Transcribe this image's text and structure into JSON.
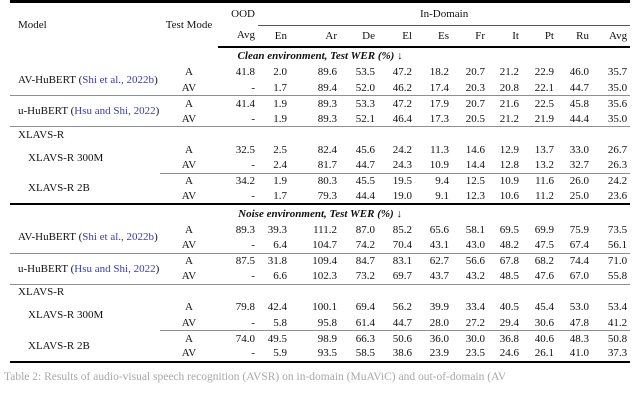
{
  "table": {
    "header": {
      "model": "Model",
      "test_mode": "Test Mode",
      "ood": "OOD",
      "in_domain": "In-Domain",
      "subheaders": [
        "Avg",
        "En",
        "Ar",
        "De",
        "El",
        "Es",
        "Fr",
        "It",
        "Pt",
        "Ru",
        "Avg"
      ]
    },
    "sections": [
      {
        "title": "Clean environment, Test WER (%) ↓",
        "entries": [
          {
            "model": "AV-HuBERT",
            "citation": "Shi et al., 2022b",
            "indent": false,
            "rule_after": "full",
            "rows": [
              {
                "mode": "A",
                "ood": "41.8",
                "in_domain": [
                  "2.0",
                  "89.6",
                  "53.5",
                  "47.2",
                  "18.2",
                  "20.7",
                  "21.2",
                  "22.9",
                  "46.0",
                  "35.7"
                ]
              },
              {
                "mode": "AV",
                "ood": "-",
                "in_domain": [
                  "1.7",
                  "89.4",
                  "52.0",
                  "46.2",
                  "17.4",
                  "20.3",
                  "20.8",
                  "22.1",
                  "44.7",
                  "35.0"
                ]
              }
            ]
          },
          {
            "model": "u-HuBERT",
            "citation": "Hsu and Shi, 2022",
            "indent": false,
            "rule_after": "full",
            "rows": [
              {
                "mode": "A",
                "ood": "41.4",
                "in_domain": [
                  "1.9",
                  "89.3",
                  "53.3",
                  "47.2",
                  "17.9",
                  "20.7",
                  "21.6",
                  "22.5",
                  "45.8",
                  "35.6"
                ]
              },
              {
                "mode": "AV",
                "ood": "-",
                "in_domain": [
                  "1.9",
                  "89.3",
                  "52.1",
                  "46.4",
                  "17.3",
                  "20.5",
                  "21.2",
                  "21.9",
                  "44.4",
                  "35.0"
                ]
              }
            ]
          },
          {
            "model": "XLAVS-R",
            "label_only": true
          },
          {
            "model": "XLAVS-R 300M",
            "indent": true,
            "rule_after": "partial",
            "rows": [
              {
                "mode": "A",
                "ood": "32.5",
                "in_domain": [
                  "2.5",
                  "82.4",
                  "45.6",
                  "24.2",
                  "11.3",
                  "14.6",
                  "12.9",
                  "13.7",
                  "33.0",
                  "26.7"
                ]
              },
              {
                "mode": "AV",
                "ood": "-",
                "in_domain": [
                  "2.4",
                  "81.7",
                  "44.7",
                  "24.3",
                  "10.9",
                  "14.4",
                  "12.8",
                  "13.2",
                  "32.7",
                  "26.3"
                ]
              }
            ]
          },
          {
            "model": "XLAVS-R 2B",
            "indent": true,
            "rule_after": "thick",
            "rows": [
              {
                "mode": "A",
                "ood": "34.2",
                "in_domain": [
                  "1.9",
                  "80.3",
                  "45.5",
                  "19.5",
                  "9.4",
                  "12.5",
                  "10.9",
                  "11.6",
                  "26.0",
                  "24.2"
                ]
              },
              {
                "mode": "AV",
                "ood": "-",
                "in_domain": [
                  "1.7",
                  "79.3",
                  "44.4",
                  "19.0",
                  "9.1",
                  "12.3",
                  "10.6",
                  "11.2",
                  "25.0",
                  "23.6"
                ]
              }
            ]
          }
        ]
      },
      {
        "title": "Noise environment, Test WER (%) ↓",
        "entries": [
          {
            "model": "AV-HuBERT",
            "citation": "Shi et al., 2022b",
            "indent": false,
            "rule_after": "full",
            "rows": [
              {
                "mode": "A",
                "ood": "89.3",
                "in_domain": [
                  "39.3",
                  "111.2",
                  "87.0",
                  "85.2",
                  "65.6",
                  "58.1",
                  "69.5",
                  "69.9",
                  "75.9",
                  "73.5"
                ]
              },
              {
                "mode": "AV",
                "ood": "-",
                "in_domain": [
                  "6.4",
                  "104.7",
                  "74.2",
                  "70.4",
                  "43.1",
                  "43.0",
                  "48.2",
                  "47.5",
                  "67.4",
                  "56.1"
                ]
              }
            ]
          },
          {
            "model": "u-HuBERT",
            "citation": "Hsu and Shi, 2022",
            "indent": false,
            "rule_after": "full",
            "rows": [
              {
                "mode": "A",
                "ood": "87.5",
                "in_domain": [
                  "31.8",
                  "109.4",
                  "84.7",
                  "83.1",
                  "62.7",
                  "56.6",
                  "67.8",
                  "68.2",
                  "74.4",
                  "71.0"
                ]
              },
              {
                "mode": "AV",
                "ood": "-",
                "in_domain": [
                  "6.6",
                  "102.3",
                  "73.2",
                  "69.7",
                  "43.7",
                  "43.2",
                  "48.5",
                  "47.6",
                  "67.0",
                  "55.8"
                ]
              }
            ]
          },
          {
            "model": "XLAVS-R",
            "label_only": true
          },
          {
            "model": "XLAVS-R 300M",
            "indent": true,
            "rule_after": "partial",
            "rows": [
              {
                "mode": "A",
                "ood": "79.8",
                "in_domain": [
                  "42.4",
                  "100.1",
                  "69.4",
                  "56.2",
                  "39.9",
                  "33.4",
                  "40.5",
                  "45.4",
                  "53.0",
                  "53.4"
                ]
              },
              {
                "mode": "AV",
                "ood": "-",
                "in_domain": [
                  "5.8",
                  "95.8",
                  "61.4",
                  "44.7",
                  "28.0",
                  "27.2",
                  "29.4",
                  "30.6",
                  "47.8",
                  "41.2"
                ]
              }
            ]
          },
          {
            "model": "XLAVS-R 2B",
            "indent": true,
            "rule_after": "thick",
            "rows": [
              {
                "mode": "A",
                "ood": "74.0",
                "in_domain": [
                  "49.5",
                  "98.9",
                  "66.3",
                  "50.6",
                  "36.0",
                  "30.0",
                  "36.8",
                  "40.6",
                  "48.3",
                  "50.8"
                ]
              },
              {
                "mode": "AV",
                "ood": "-",
                "in_domain": [
                  "5.9",
                  "93.5",
                  "58.5",
                  "38.6",
                  "23.9",
                  "23.5",
                  "24.6",
                  "26.1",
                  "41.0",
                  "37.3"
                ]
              }
            ]
          }
        ]
      }
    ]
  },
  "caption": "Table 2: Results of audio-visual speech recognition (AVSR) on in-domain (MuAViC) and out-of-domain (AV"
}
